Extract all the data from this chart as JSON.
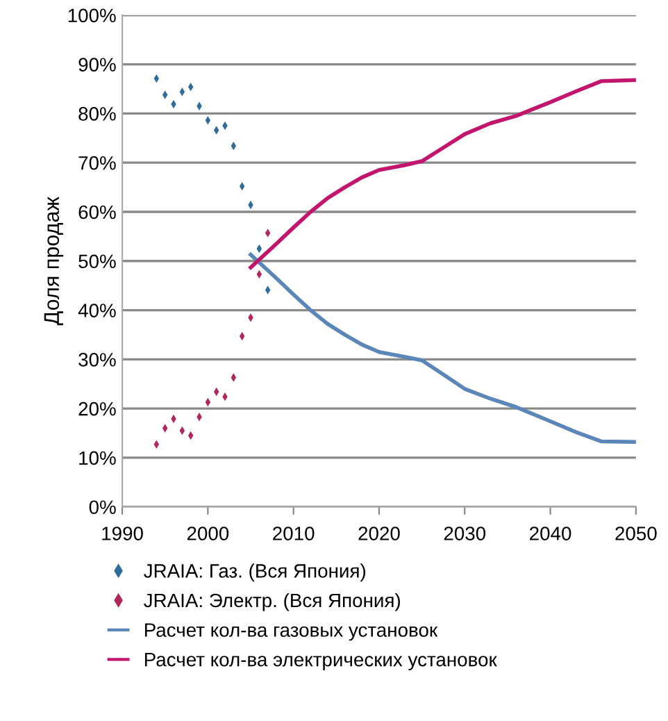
{
  "chart_data": {
    "type": "line",
    "ylabel": "Доля продаж",
    "xlim": [
      1990,
      2050
    ],
    "xticks": [
      1990,
      2000,
      2010,
      2020,
      2030,
      2040,
      2050
    ],
    "ylim": [
      0,
      100
    ],
    "yticks": [
      {
        "value": 0,
        "label": "0%"
      },
      {
        "value": 10,
        "label": "10%"
      },
      {
        "value": 20,
        "label": "20%"
      },
      {
        "value": 30,
        "label": "30%"
      },
      {
        "value": 40,
        "label": "40%"
      },
      {
        "value": 50,
        "label": "50%"
      },
      {
        "value": 60,
        "label": "60%"
      },
      {
        "value": 70,
        "label": "70%"
      },
      {
        "value": 80,
        "label": "80%"
      },
      {
        "value": 90,
        "label": "90%"
      },
      {
        "value": 100,
        "label": "100%"
      }
    ],
    "grid": "y",
    "legend": "bottom",
    "series": [
      {
        "name": "JRAIA: Газ. (Вся Япония)",
        "type": "scatter",
        "marker": "diamond",
        "color": "#2f6d9a",
        "x": [
          1994,
          1995,
          1996,
          1997,
          1998,
          1999,
          2000,
          2001,
          2002,
          2003,
          2004,
          2005,
          2006,
          2007
        ],
        "values": [
          87.1,
          83.8,
          81.9,
          84.4,
          85.4,
          81.5,
          78.6,
          76.6,
          77.5,
          73.4,
          65.2,
          61.4,
          52.5,
          44.1
        ]
      },
      {
        "name": "JRAIA: Электр. (Вся Япония)",
        "type": "scatter",
        "marker": "diamond",
        "color": "#b0265e",
        "x": [
          1994,
          1995,
          1996,
          1997,
          1998,
          1999,
          2000,
          2001,
          2002,
          2003,
          2004,
          2005,
          2006,
          2007
        ],
        "values": [
          12.7,
          16.0,
          17.9,
          15.5,
          14.5,
          18.3,
          21.3,
          23.4,
          22.4,
          26.3,
          34.7,
          38.5,
          47.3,
          55.7
        ]
      },
      {
        "name": "Расчет кол-ва газовых установок",
        "marker": "none",
        "color": "#5b86b8",
        "x": [
          2005,
          2008,
          2010,
          2012,
          2014,
          2016,
          2018,
          2020,
          2023,
          2025,
          2027,
          2030,
          2033,
          2036,
          2040,
          2043,
          2046,
          2050
        ],
        "values": [
          51.3,
          46.5,
          43.2,
          40,
          37.2,
          35,
          33,
          31.5,
          30.5,
          29.8,
          27.5,
          24,
          22,
          20.3,
          17.4,
          15.2,
          13.3,
          13.2
        ]
      },
      {
        "name": "Расчет кол-ва электрических установок",
        "marker": "none",
        "color": "#c2156e",
        "x": [
          2005,
          2008,
          2010,
          2012,
          2014,
          2016,
          2018,
          2020,
          2023,
          2025,
          2027,
          2030,
          2033,
          2036,
          2040,
          2043,
          2046,
          2050
        ],
        "values": [
          48.7,
          53.5,
          56.8,
          60,
          62.8,
          65,
          67,
          68.5,
          69.5,
          70.3,
          72.5,
          75.8,
          78,
          79.5,
          82.3,
          84.5,
          86.6,
          86.8
        ]
      }
    ]
  }
}
